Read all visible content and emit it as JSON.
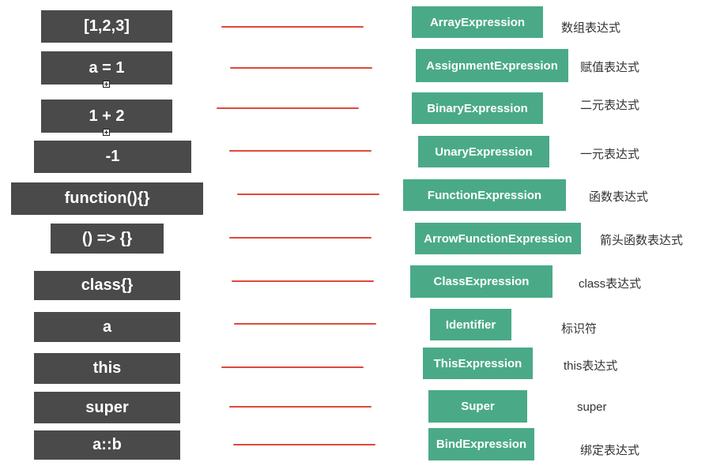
{
  "rows": [
    {
      "code": "[1,2,3]",
      "node": "ArrayExpression",
      "desc": "数组表达式"
    },
    {
      "code": "a = 1",
      "node": "AssignmentExpression",
      "desc": "赋值表达式"
    },
    {
      "code": "1 + 2",
      "node": "BinaryExpression",
      "desc": "二元表达式"
    },
    {
      "code": "-1",
      "node": "UnaryExpression",
      "desc": "一元表达式"
    },
    {
      "code": "function(){}",
      "node": "FunctionExpression",
      "desc": "函数表达式"
    },
    {
      "code": "() => {}",
      "node": "ArrowFunctionExpression",
      "desc": "箭头函数表达式"
    },
    {
      "code": "class{}",
      "node": "ClassExpression",
      "desc": "class表达式"
    },
    {
      "code": "a",
      "node": "Identifier",
      "desc": "标识符"
    },
    {
      "code": "this",
      "node": "ThisExpression",
      "desc": "this表达式"
    },
    {
      "code": "super",
      "node": "Super",
      "desc": "super"
    },
    {
      "code": "a::b",
      "node": "BindExpression",
      "desc": "绑定表达式"
    }
  ],
  "colors": {
    "code_box": "#4a4a4a",
    "node_box": "#4aaa88",
    "connector": "#dd4a3a"
  }
}
